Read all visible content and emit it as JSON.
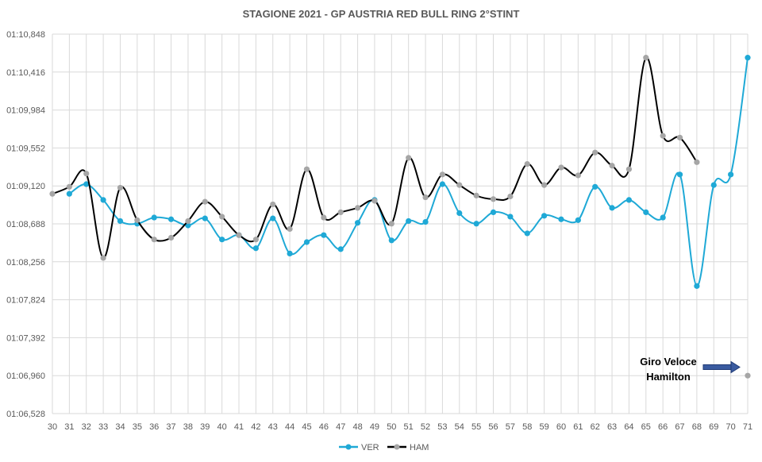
{
  "chart_data": {
    "type": "line",
    "title": "STAGIONE 2021 - GP AUSTRIA RED BULL RING 2°STINT",
    "xlabel": "",
    "ylabel": "",
    "x": [
      30,
      31,
      32,
      33,
      34,
      35,
      36,
      37,
      38,
      39,
      40,
      41,
      42,
      43,
      44,
      45,
      46,
      47,
      48,
      49,
      50,
      51,
      52,
      53,
      54,
      55,
      56,
      57,
      58,
      59,
      60,
      61,
      62,
      63,
      64,
      65,
      66,
      67,
      68,
      69,
      70,
      71
    ],
    "y_tick_labels": [
      "01:06,528",
      "01:06,960",
      "01:07,392",
      "01:07,824",
      "01:08,256",
      "01:08,688",
      "01:09,120",
      "01:09,552",
      "01:09,984",
      "01:10,416",
      "01:10,848"
    ],
    "ylim_seconds": [
      66.528,
      70.848
    ],
    "series": [
      {
        "name": "VER",
        "color": "#1FA9D6",
        "values_seconds": [
          null,
          69.03,
          69.14,
          68.96,
          68.72,
          68.69,
          68.76,
          68.74,
          68.67,
          68.75,
          68.51,
          68.56,
          68.41,
          68.75,
          68.35,
          68.48,
          68.56,
          68.4,
          68.7,
          68.96,
          68.5,
          68.72,
          68.71,
          69.14,
          68.81,
          68.69,
          68.82,
          68.77,
          68.58,
          68.78,
          68.74,
          68.73,
          69.11,
          68.87,
          68.96,
          68.82,
          68.76,
          69.25,
          67.98,
          69.13,
          69.25,
          70.58
        ]
      },
      {
        "name": "HAM",
        "color": "#000000",
        "marker_color": "#A6A6A6",
        "values_seconds": [
          69.03,
          69.11,
          69.26,
          68.3,
          69.1,
          68.73,
          68.51,
          68.53,
          68.72,
          68.94,
          68.77,
          68.56,
          68.51,
          68.91,
          68.63,
          69.31,
          68.76,
          68.82,
          68.87,
          68.95,
          68.69,
          69.44,
          68.99,
          69.25,
          69.13,
          69.01,
          68.97,
          69.0,
          69.37,
          69.13,
          69.33,
          69.24,
          69.5,
          69.35,
          69.31,
          70.58,
          69.69,
          69.67,
          69.39,
          null,
          null,
          null
        ]
      }
    ],
    "extra_points": [
      {
        "series": "HAM",
        "x": 71,
        "value_seconds": 66.96,
        "label_line1": "Giro Veloce",
        "label_line2": "Hamilton"
      }
    ],
    "legend": {
      "position": "bottom",
      "entries": [
        "VER",
        "HAM"
      ]
    },
    "grid": true
  }
}
